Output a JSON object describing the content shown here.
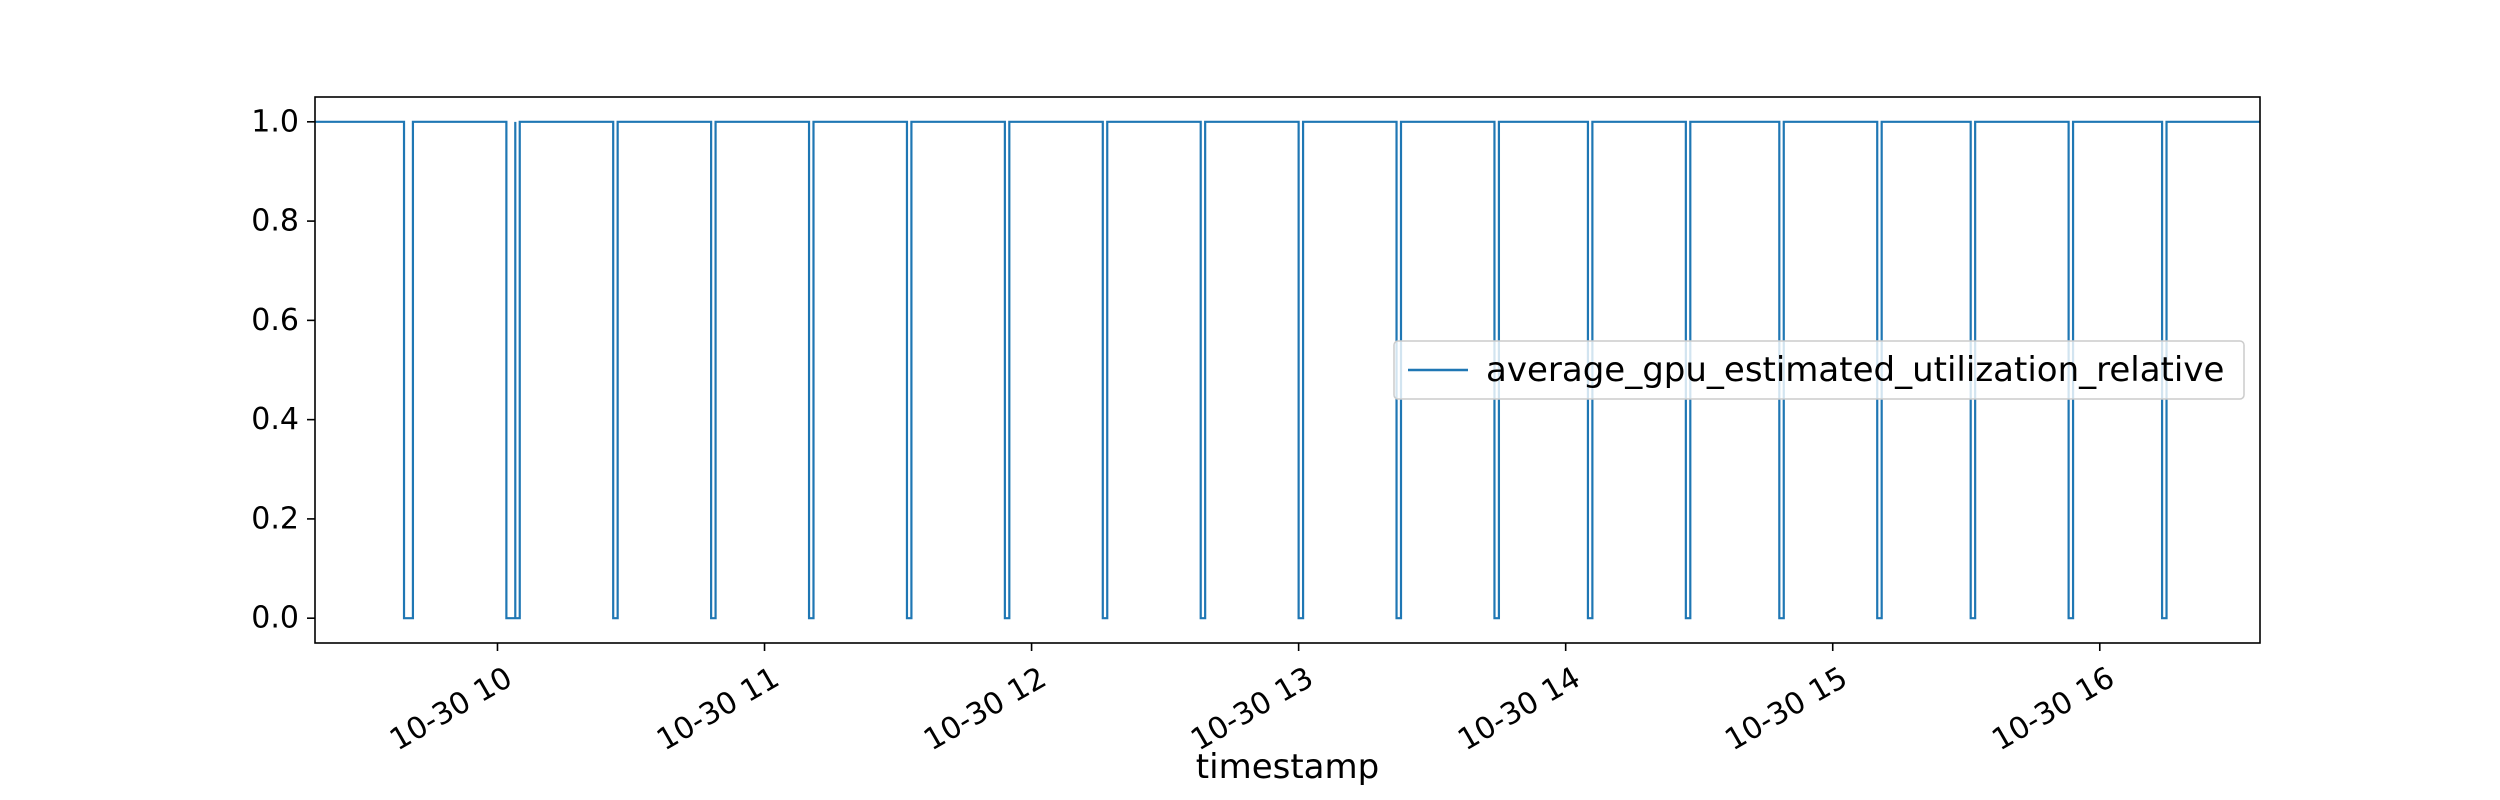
{
  "chart_data": {
    "type": "line",
    "title": "",
    "xlabel": "timestamp",
    "ylabel": "",
    "legend_position": "center-right",
    "grid": false,
    "xlim": [
      "2023-10-30 09:19",
      "2023-10-30 16:36"
    ],
    "ylim": [
      -0.05,
      1.05
    ],
    "x_ticks": [
      "2023-10-30 10:00",
      "2023-10-30 11:00",
      "2023-10-30 12:00",
      "2023-10-30 13:00",
      "2023-10-30 14:00",
      "2023-10-30 15:00",
      "2023-10-30 16:00"
    ],
    "x_tick_labels": [
      "10-30 10",
      "10-30 11",
      "10-30 12",
      "10-30 13",
      "10-30 14",
      "10-30 15",
      "10-30 16"
    ],
    "y_ticks": [
      0.0,
      0.2,
      0.4,
      0.6,
      0.8,
      1.0
    ],
    "y_tick_labels": [
      "0.0",
      "0.2",
      "0.4",
      "0.6",
      "0.8",
      "1.0"
    ],
    "series": [
      {
        "name": "average_gpu_estimated_utilization_relative",
        "color": "#1f77b4",
        "drawstyle": "steps",
        "points": [
          [
            "2023-10-30 09:19",
            1
          ],
          [
            "2023-10-30 09:39",
            1
          ],
          [
            "2023-10-30 09:39",
            0
          ],
          [
            "2023-10-30 09:41",
            0
          ],
          [
            "2023-10-30 09:41",
            1
          ],
          [
            "2023-10-30 10:02",
            1
          ],
          [
            "2023-10-30 10:02",
            0
          ],
          [
            "2023-10-30 10:04",
            0
          ],
          [
            "2023-10-30 10:04",
            1
          ],
          [
            "2023-10-30 10:04",
            1
          ],
          [
            "2023-10-30 10:04",
            0
          ],
          [
            "2023-10-30 10:05",
            0
          ],
          [
            "2023-10-30 10:05",
            1
          ],
          [
            "2023-10-30 10:26",
            1
          ],
          [
            "2023-10-30 10:26",
            0
          ],
          [
            "2023-10-30 10:27",
            0
          ],
          [
            "2023-10-30 10:27",
            1
          ],
          [
            "2023-10-30 10:48",
            1
          ],
          [
            "2023-10-30 10:48",
            0
          ],
          [
            "2023-10-30 10:49",
            0
          ],
          [
            "2023-10-30 10:49",
            1
          ],
          [
            "2023-10-30 11:10",
            1
          ],
          [
            "2023-10-30 11:10",
            0
          ],
          [
            "2023-10-30 11:11",
            0
          ],
          [
            "2023-10-30 11:11",
            1
          ],
          [
            "2023-10-30 11:32",
            1
          ],
          [
            "2023-10-30 11:32",
            0
          ],
          [
            "2023-10-30 11:33",
            0
          ],
          [
            "2023-10-30 11:33",
            1
          ],
          [
            "2023-10-30 11:54",
            1
          ],
          [
            "2023-10-30 11:54",
            0
          ],
          [
            "2023-10-30 11:55",
            0
          ],
          [
            "2023-10-30 11:55",
            1
          ],
          [
            "2023-10-30 12:16",
            1
          ],
          [
            "2023-10-30 12:16",
            0
          ],
          [
            "2023-10-30 12:17",
            0
          ],
          [
            "2023-10-30 12:17",
            1
          ],
          [
            "2023-10-30 12:38",
            1
          ],
          [
            "2023-10-30 12:38",
            0
          ],
          [
            "2023-10-30 12:39",
            0
          ],
          [
            "2023-10-30 12:39",
            1
          ],
          [
            "2023-10-30 13:00",
            1
          ],
          [
            "2023-10-30 13:00",
            0
          ],
          [
            "2023-10-30 13:01",
            0
          ],
          [
            "2023-10-30 13:01",
            1
          ],
          [
            "2023-10-30 13:22",
            1
          ],
          [
            "2023-10-30 13:22",
            0
          ],
          [
            "2023-10-30 13:23",
            0
          ],
          [
            "2023-10-30 13:23",
            1
          ],
          [
            "2023-10-30 13:44",
            1
          ],
          [
            "2023-10-30 13:44",
            0
          ],
          [
            "2023-10-30 13:45",
            0
          ],
          [
            "2023-10-30 13:45",
            1
          ],
          [
            "2023-10-30 14:05",
            1
          ],
          [
            "2023-10-30 14:05",
            0
          ],
          [
            "2023-10-30 14:06",
            0
          ],
          [
            "2023-10-30 14:06",
            1
          ],
          [
            "2023-10-30 14:27",
            1
          ],
          [
            "2023-10-30 14:27",
            0
          ],
          [
            "2023-10-30 14:28",
            0
          ],
          [
            "2023-10-30 14:28",
            1
          ],
          [
            "2023-10-30 14:48",
            1
          ],
          [
            "2023-10-30 14:48",
            0
          ],
          [
            "2023-10-30 14:49",
            0
          ],
          [
            "2023-10-30 14:49",
            1
          ],
          [
            "2023-10-30 15:10",
            1
          ],
          [
            "2023-10-30 15:10",
            0
          ],
          [
            "2023-10-30 15:11",
            0
          ],
          [
            "2023-10-30 15:11",
            1
          ],
          [
            "2023-10-30 15:31",
            1
          ],
          [
            "2023-10-30 15:31",
            0
          ],
          [
            "2023-10-30 15:32",
            0
          ],
          [
            "2023-10-30 15:32",
            1
          ],
          [
            "2023-10-30 15:53",
            1
          ],
          [
            "2023-10-30 15:53",
            0
          ],
          [
            "2023-10-30 15:54",
            0
          ],
          [
            "2023-10-30 15:54",
            1
          ],
          [
            "2023-10-30 16:14",
            1
          ],
          [
            "2023-10-30 16:14",
            0
          ],
          [
            "2023-10-30 16:15",
            0
          ],
          [
            "2023-10-30 16:15",
            1
          ],
          [
            "2023-10-30 16:36",
            1
          ]
        ]
      }
    ]
  }
}
